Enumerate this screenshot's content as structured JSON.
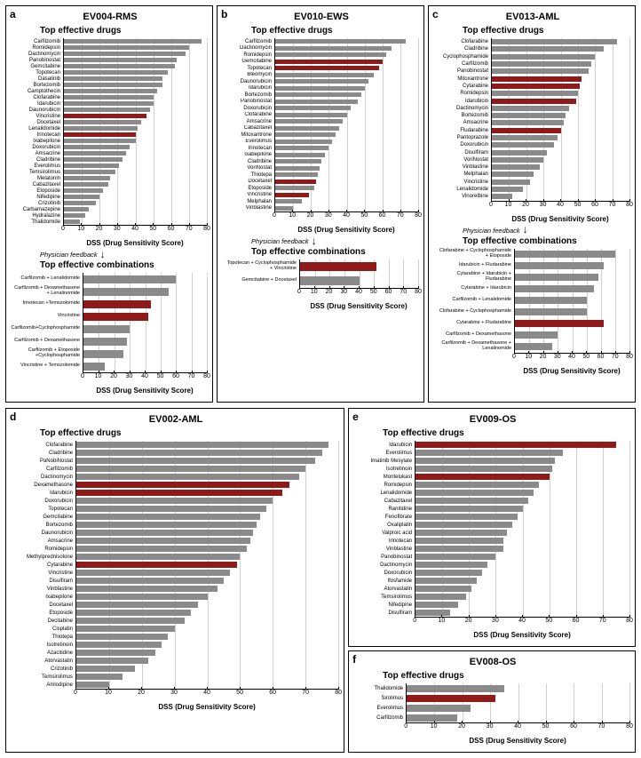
{
  "colors": {
    "normal": "#8a8a8a",
    "highlight": "#8f1a1a",
    "gridline": "#d0d0d0"
  },
  "xaxis": {
    "max": 80,
    "ticks": [
      0,
      10,
      20,
      30,
      40,
      50,
      60,
      70,
      80
    ],
    "label": "DSS (Drug Sensitivity Score)"
  },
  "feedback_text": "Physician feedback",
  "top_title": "Top effective drugs",
  "combo_title": "Top effective combinations",
  "panels": {
    "a": {
      "letter": "a",
      "title": "EV004-RMS",
      "drugs": [
        {
          "l": "Carfilzomib",
          "v": 77,
          "h": 0
        },
        {
          "l": "Romidepsin",
          "v": 70,
          "h": 0
        },
        {
          "l": "Dactinomycin",
          "v": 68,
          "h": 0
        },
        {
          "l": "Panobinostat",
          "v": 63,
          "h": 0
        },
        {
          "l": "Gemcitabine",
          "v": 62,
          "h": 0
        },
        {
          "l": "Topotecan",
          "v": 58,
          "h": 0
        },
        {
          "l": "Dasatinib",
          "v": 55,
          "h": 0
        },
        {
          "l": "Bortezomib",
          "v": 55,
          "h": 0
        },
        {
          "l": "Camptothecin",
          "v": 52,
          "h": 0
        },
        {
          "l": "Clofarabine",
          "v": 50,
          "h": 0
        },
        {
          "l": "Idarubicin",
          "v": 50,
          "h": 0
        },
        {
          "l": "Daunorubicin",
          "v": 48,
          "h": 0
        },
        {
          "l": "Vincristine",
          "v": 46,
          "h": 1
        },
        {
          "l": "Docetaxel",
          "v": 43,
          "h": 0
        },
        {
          "l": "Lenalidomide",
          "v": 41,
          "h": 0
        },
        {
          "l": "Irinotecan",
          "v": 40,
          "h": 1
        },
        {
          "l": "Ixabepilone",
          "v": 40,
          "h": 0
        },
        {
          "l": "Doxorubicin",
          "v": 37,
          "h": 0
        },
        {
          "l": "Amsacrine",
          "v": 35,
          "h": 0
        },
        {
          "l": "Cladribine",
          "v": 33,
          "h": 0
        },
        {
          "l": "Everolimus",
          "v": 31,
          "h": 0
        },
        {
          "l": "Temsirolimus",
          "v": 29,
          "h": 0
        },
        {
          "l": "Melatonin",
          "v": 26,
          "h": 0
        },
        {
          "l": "Cabazitaxel",
          "v": 25,
          "h": 0
        },
        {
          "l": "Etoposide",
          "v": 22,
          "h": 0
        },
        {
          "l": "Nifedipine",
          "v": 20,
          "h": 0
        },
        {
          "l": "Crizotinib",
          "v": 18,
          "h": 0
        },
        {
          "l": "Carbamazepine",
          "v": 14,
          "h": 0
        },
        {
          "l": "Hydralazine",
          "v": 12,
          "h": 0
        },
        {
          "l": "Thalidomide",
          "v": 9,
          "h": 0
        }
      ],
      "combos": [
        {
          "l": "Carfilzomib + Lenalidomide",
          "v": 60,
          "h": 0
        },
        {
          "l": "Carfilzomib + Dexamethasone + Lenalinomide",
          "v": 55,
          "h": 0
        },
        {
          "l": "Irinotecan +Temozolomide",
          "v": 44,
          "h": 1
        },
        {
          "l": "Vincristine",
          "v": 42,
          "h": 1
        },
        {
          "l": "Carfilzomib+Cyclophosphamide",
          "v": 30,
          "h": 0
        },
        {
          "l": "Carfilzomib + Dexamethasone",
          "v": 28,
          "h": 0
        },
        {
          "l": "Carfilzomib + Etoposide +Cyclophosphamide",
          "v": 26,
          "h": 0
        },
        {
          "l": "Vincristine + Temozolomide",
          "v": 14,
          "h": 0
        }
      ]
    },
    "b": {
      "letter": "b",
      "title": "EV010-EWS",
      "drugs": [
        {
          "l": "Carfilzomib",
          "v": 73,
          "h": 0
        },
        {
          "l": "Dactinomycin",
          "v": 65,
          "h": 0
        },
        {
          "l": "Romidepsin",
          "v": 62,
          "h": 0
        },
        {
          "l": "Gemcitabine",
          "v": 60,
          "h": 1
        },
        {
          "l": "Topotecan",
          "v": 58,
          "h": 1
        },
        {
          "l": "Bleomycin",
          "v": 55,
          "h": 0
        },
        {
          "l": "Daunorubicin",
          "v": 52,
          "h": 0
        },
        {
          "l": "Idarubicin",
          "v": 50,
          "h": 0
        },
        {
          "l": "Bortezomib",
          "v": 48,
          "h": 0
        },
        {
          "l": "Panobinostat",
          "v": 46,
          "h": 0
        },
        {
          "l": "Doxorubicin",
          "v": 42,
          "h": 0
        },
        {
          "l": "Clofarabine",
          "v": 40,
          "h": 0
        },
        {
          "l": "Amsacrine",
          "v": 38,
          "h": 0
        },
        {
          "l": "Cabazitaxel",
          "v": 36,
          "h": 0
        },
        {
          "l": "Mitoxantrone",
          "v": 34,
          "h": 0
        },
        {
          "l": "Everolimus",
          "v": 32,
          "h": 0
        },
        {
          "l": "Irinotecan",
          "v": 30,
          "h": 0
        },
        {
          "l": "Ixabepilone",
          "v": 28,
          "h": 0
        },
        {
          "l": "Cladribine",
          "v": 26,
          "h": 0
        },
        {
          "l": "VoriNostat",
          "v": 25,
          "h": 0
        },
        {
          "l": "Thiotepa",
          "v": 24,
          "h": 0
        },
        {
          "l": "Docetaxel",
          "v": 23,
          "h": 1
        },
        {
          "l": "Etoposide",
          "v": 22,
          "h": 0
        },
        {
          "l": "Vincristine",
          "v": 19,
          "h": 1
        },
        {
          "l": "Melphalan",
          "v": 15,
          "h": 0
        },
        {
          "l": "Vinblastine",
          "v": 10,
          "h": 0
        }
      ],
      "combos": [
        {
          "l": "Topotecan + Cyclophosphamide + Vincristine",
          "v": 52,
          "h": 1
        },
        {
          "l": "Gemcitabine + Docetaxel",
          "v": 40,
          "h": 0
        }
      ]
    },
    "c": {
      "letter": "c",
      "title": "EV013-AML",
      "drugs": [
        {
          "l": "Clofarabine",
          "v": 73,
          "h": 0
        },
        {
          "l": "Cladribine",
          "v": 65,
          "h": 0
        },
        {
          "l": "Cyclophosphamide",
          "v": 60,
          "h": 0
        },
        {
          "l": "Carfilzomib",
          "v": 58,
          "h": 0
        },
        {
          "l": "Panobinostat",
          "v": 56,
          "h": 0
        },
        {
          "l": "Mitoxantrone",
          "v": 52,
          "h": 1
        },
        {
          "l": "Cytarabine",
          "v": 51,
          "h": 1
        },
        {
          "l": "Romidepsin",
          "v": 50,
          "h": 0
        },
        {
          "l": "Idarubicin",
          "v": 49,
          "h": 1
        },
        {
          "l": "Dactinomycin",
          "v": 45,
          "h": 0
        },
        {
          "l": "Bortezomib",
          "v": 43,
          "h": 0
        },
        {
          "l": "Amsacrine",
          "v": 42,
          "h": 0
        },
        {
          "l": "Fludarabine",
          "v": 40,
          "h": 1
        },
        {
          "l": "Pantoprazole",
          "v": 38,
          "h": 0
        },
        {
          "l": "Doxorubicin",
          "v": 36,
          "h": 0
        },
        {
          "l": "Disulfiram",
          "v": 32,
          "h": 0
        },
        {
          "l": "VoriNostat",
          "v": 30,
          "h": 0
        },
        {
          "l": "Vinblastine",
          "v": 28,
          "h": 0
        },
        {
          "l": "Melphalan",
          "v": 24,
          "h": 0
        },
        {
          "l": "Vincristine",
          "v": 22,
          "h": 0
        },
        {
          "l": "Lenalidomide",
          "v": 18,
          "h": 0
        },
        {
          "l": "Vinorelbine",
          "v": 12,
          "h": 0
        }
      ],
      "combos": [
        {
          "l": "Clofarabine + Cyclophosphamide + Etoposide",
          "v": 70,
          "h": 0
        },
        {
          "l": "Idarubicin + Fludarabine",
          "v": 62,
          "h": 0
        },
        {
          "l": "Cytarabine + Idarubicin + Fludarabine",
          "v": 58,
          "h": 0
        },
        {
          "l": "Cytarabine + Idarubicin",
          "v": 55,
          "h": 0
        },
        {
          "l": "Carfilzomib + Lenalidomide",
          "v": 50,
          "h": 0
        },
        {
          "l": "Clofarabine + Cyclophosphamide",
          "v": 50,
          "h": 0
        },
        {
          "l": "Cytarabine + Fludarabine",
          "v": 62,
          "h": 1
        },
        {
          "l": "Carfilzomib + Dexamethasone",
          "v": 30,
          "h": 0
        },
        {
          "l": "Carfilzomib + Dexamethasone + Lenalinomide",
          "v": 26,
          "h": 0
        }
      ]
    },
    "d": {
      "letter": "d",
      "title": "EV002-AML",
      "drugs": [
        {
          "l": "Clofarabine",
          "v": 77,
          "h": 0
        },
        {
          "l": "Cladribine",
          "v": 75,
          "h": 0
        },
        {
          "l": "PaNobiNostat",
          "v": 73,
          "h": 0
        },
        {
          "l": "Carfilzomib",
          "v": 70,
          "h": 0
        },
        {
          "l": "Dactinomycin",
          "v": 68,
          "h": 0
        },
        {
          "l": "Dexamethasone",
          "v": 65,
          "h": 1
        },
        {
          "l": "Idarubicin",
          "v": 63,
          "h": 1
        },
        {
          "l": "Doxorubicin",
          "v": 60,
          "h": 0
        },
        {
          "l": "Topotecan",
          "v": 58,
          "h": 0
        },
        {
          "l": "Gemcitabine",
          "v": 56,
          "h": 0
        },
        {
          "l": "Bortezomib",
          "v": 55,
          "h": 0
        },
        {
          "l": "Daunorubicin",
          "v": 54,
          "h": 0
        },
        {
          "l": "Amsacrine",
          "v": 53,
          "h": 0
        },
        {
          "l": "Romidepsin",
          "v": 52,
          "h": 0
        },
        {
          "l": "Methylprednisolone",
          "v": 50,
          "h": 0
        },
        {
          "l": "Cytarabine",
          "v": 49,
          "h": 1
        },
        {
          "l": "Vincristine",
          "v": 47,
          "h": 0
        },
        {
          "l": "Disulfiram",
          "v": 45,
          "h": 0
        },
        {
          "l": "Vinblastine",
          "v": 43,
          "h": 0
        },
        {
          "l": "Ixabepilone",
          "v": 40,
          "h": 0
        },
        {
          "l": "Docetaxel",
          "v": 37,
          "h": 0
        },
        {
          "l": "Etoposide",
          "v": 35,
          "h": 0
        },
        {
          "l": "Decitabine",
          "v": 33,
          "h": 0
        },
        {
          "l": "Cisplatin",
          "v": 30,
          "h": 0
        },
        {
          "l": "Thiotepa",
          "v": 28,
          "h": 0
        },
        {
          "l": "Isotretinoin",
          "v": 26,
          "h": 0
        },
        {
          "l": "Azacitidine",
          "v": 24,
          "h": 0
        },
        {
          "l": "Atorvastatin",
          "v": 22,
          "h": 0
        },
        {
          "l": "Crizotinib",
          "v": 18,
          "h": 0
        },
        {
          "l": "Temsirolimus",
          "v": 14,
          "h": 0
        },
        {
          "l": "Amlodipine",
          "v": 10,
          "h": 0
        }
      ]
    },
    "e": {
      "letter": "e",
      "title": "EV009-OS",
      "drugs": [
        {
          "l": "Idarubicin",
          "v": 75,
          "h": 1
        },
        {
          "l": "Everolimus",
          "v": 55,
          "h": 0
        },
        {
          "l": "Imatinib Mesylate",
          "v": 52,
          "h": 0
        },
        {
          "l": "Isotretinoin",
          "v": 51,
          "h": 0
        },
        {
          "l": "Montelukast",
          "v": 50,
          "h": 1
        },
        {
          "l": "Romidepsin",
          "v": 46,
          "h": 0
        },
        {
          "l": "Lenalidomide",
          "v": 44,
          "h": 0
        },
        {
          "l": "Cabazitaxel",
          "v": 42,
          "h": 0
        },
        {
          "l": "Ranitidine",
          "v": 40,
          "h": 0
        },
        {
          "l": "Fenofibrate",
          "v": 38,
          "h": 0
        },
        {
          "l": "Oxaliplatin",
          "v": 36,
          "h": 0
        },
        {
          "l": "Valproic acid",
          "v": 34,
          "h": 0
        },
        {
          "l": "Irinotecan",
          "v": 33,
          "h": 0
        },
        {
          "l": "Vinblastine",
          "v": 33,
          "h": 0
        },
        {
          "l": "Panobinostat",
          "v": 30,
          "h": 0
        },
        {
          "l": "Dactinomycin",
          "v": 27,
          "h": 0
        },
        {
          "l": "Doxorubicin",
          "v": 25,
          "h": 0
        },
        {
          "l": "Ifosfamide",
          "v": 23,
          "h": 0
        },
        {
          "l": "Atorvastatin",
          "v": 21,
          "h": 0
        },
        {
          "l": "Temsirolimus",
          "v": 19,
          "h": 0
        },
        {
          "l": "Nifedipine",
          "v": 16,
          "h": 0
        },
        {
          "l": "Disulfiram",
          "v": 13,
          "h": 0
        }
      ]
    },
    "f": {
      "letter": "f",
      "title": "EV008-OS",
      "drugs": [
        {
          "l": "Thalidomide",
          "v": 35,
          "h": 0
        },
        {
          "l": "Sirolimus",
          "v": 32,
          "h": 1
        },
        {
          "l": "Everolimus",
          "v": 23,
          "h": 0
        },
        {
          "l": "Carfilzomib",
          "v": 18,
          "h": 0
        }
      ]
    }
  }
}
